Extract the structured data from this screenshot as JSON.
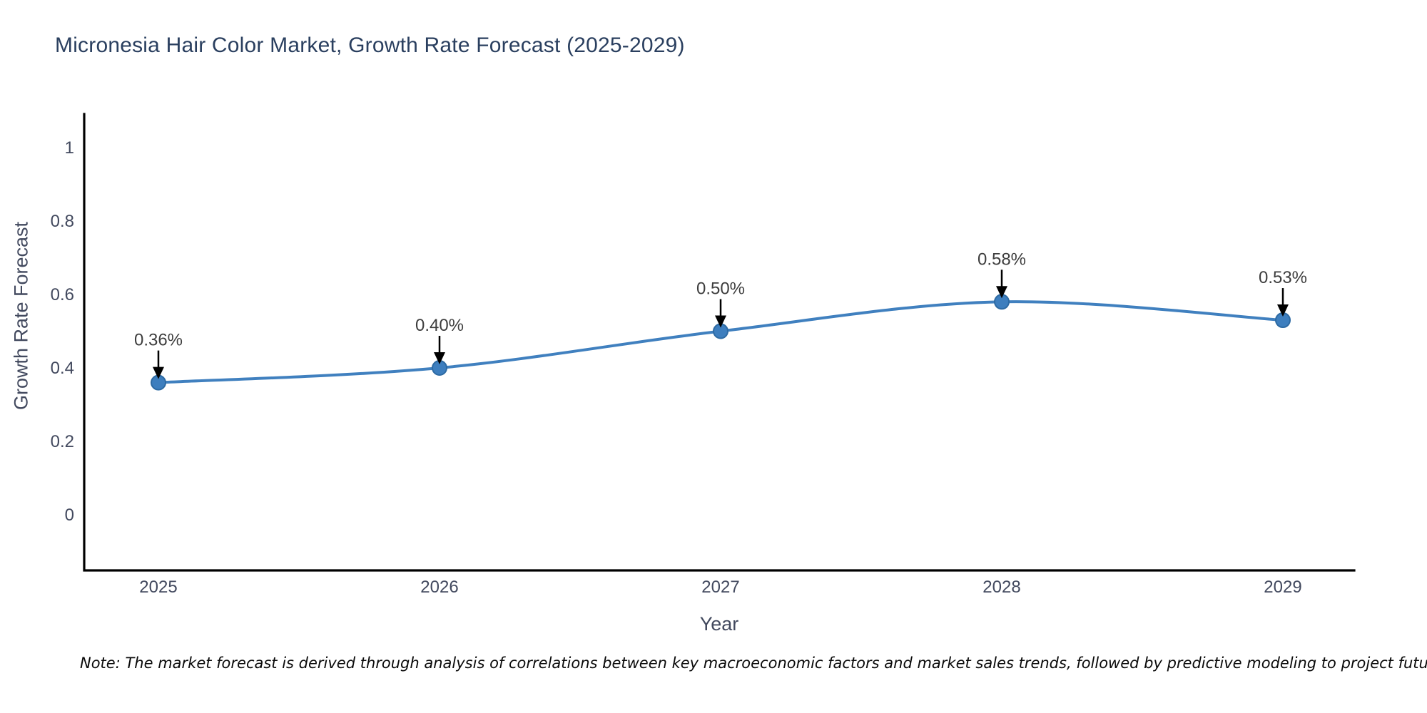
{
  "header": {
    "title": "Micronesia Hair Color Market, Growth Rate Forecast (2025-2029)"
  },
  "chart_data": {
    "type": "line",
    "x": [
      2025,
      2026,
      2027,
      2028,
      2029
    ],
    "series": [
      {
        "name": "Growth Rate Forecast",
        "values": [
          0.36,
          0.4,
          0.5,
          0.58,
          0.53
        ]
      }
    ],
    "point_labels": [
      "0.36%",
      "0.40%",
      "0.50%",
      "0.58%",
      "0.53%"
    ],
    "title": "Micronesia Hair Color Market, Growth Rate Forecast (2025-2029)",
    "xlabel": "Year",
    "ylabel": "Growth Rate Forecast",
    "yticks": [
      "0",
      "0.2",
      "0.4",
      "0.6",
      "0.8",
      "1"
    ],
    "xticks": [
      "2025",
      "2026",
      "2027",
      "2028",
      "2029"
    ],
    "ylim": [
      -0.15,
      1.09
    ],
    "grid": false,
    "legend_position": "none",
    "line_shape": "spline",
    "colors": {
      "line": "#4080bf",
      "marker_fill": "#3d7ebe",
      "marker_edge": "#2d6aa3",
      "axis": "#000000",
      "tick_text": "#42495e",
      "annotation_text": "#3d3d3d",
      "annotation_arrow": "#000000",
      "title_text": "#2a3f5f"
    }
  },
  "footer": {
    "note": "Note: The market forecast is derived through analysis of correlations between key macroeconomic factors and market sales trends, followed by predictive modeling to project future sales"
  }
}
